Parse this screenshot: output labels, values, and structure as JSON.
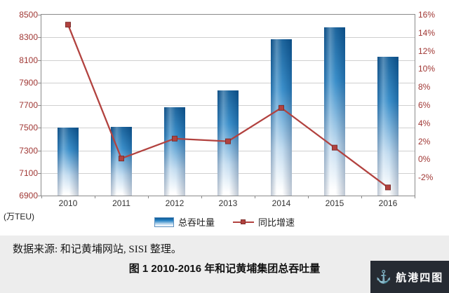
{
  "chart_data": {
    "type": "bar+line",
    "title": "2010-2016 年和记黄埔集团总吞吐量",
    "unit_label": "(万TEU)",
    "categories": [
      "2010",
      "2011",
      "2012",
      "2013",
      "2014",
      "2015",
      "2016"
    ],
    "series": [
      {
        "name": "总吞吐量",
        "type": "bar",
        "axis": "left",
        "values": [
          7500,
          7510,
          7680,
          7830,
          8280,
          8390,
          8130
        ]
      },
      {
        "name": "同比增速",
        "type": "line",
        "axis": "right",
        "unit": "%",
        "values": [
          14.9,
          0.1,
          2.3,
          2.0,
          5.7,
          1.3,
          -3.1
        ]
      }
    ],
    "left_axis": {
      "min": 6900,
      "max": 8500,
      "step": 200,
      "ticks": [
        8500,
        8300,
        8100,
        7900,
        7700,
        7500,
        7300,
        7100,
        6900
      ]
    },
    "right_axis": {
      "min": -4,
      "max": 16,
      "step": 2,
      "suffix": "%",
      "ticks": [
        16,
        14,
        12,
        10,
        8,
        6,
        4,
        2,
        0,
        -2
      ]
    },
    "grid": true,
    "legend_position": "bottom",
    "colors": {
      "bar_top": "#0b5894",
      "bar_mid": "#2b86c6",
      "bar_light": "#bcd8ee",
      "line": "#b2423f",
      "marker_border": "#7f2f2d",
      "axis_label": "#a03734",
      "grid": "#cfcfcf",
      "plot_border": "#8a8a8a"
    }
  },
  "source_note": "数据来源: 和记黄埔网站, SISI 整理。",
  "caption": "图 1  2010-2016 年和记黄埔集团总吞吐量",
  "logo": {
    "icon": "anchor-icon",
    "icon_glyph": "⚓",
    "text": "航港四图"
  }
}
